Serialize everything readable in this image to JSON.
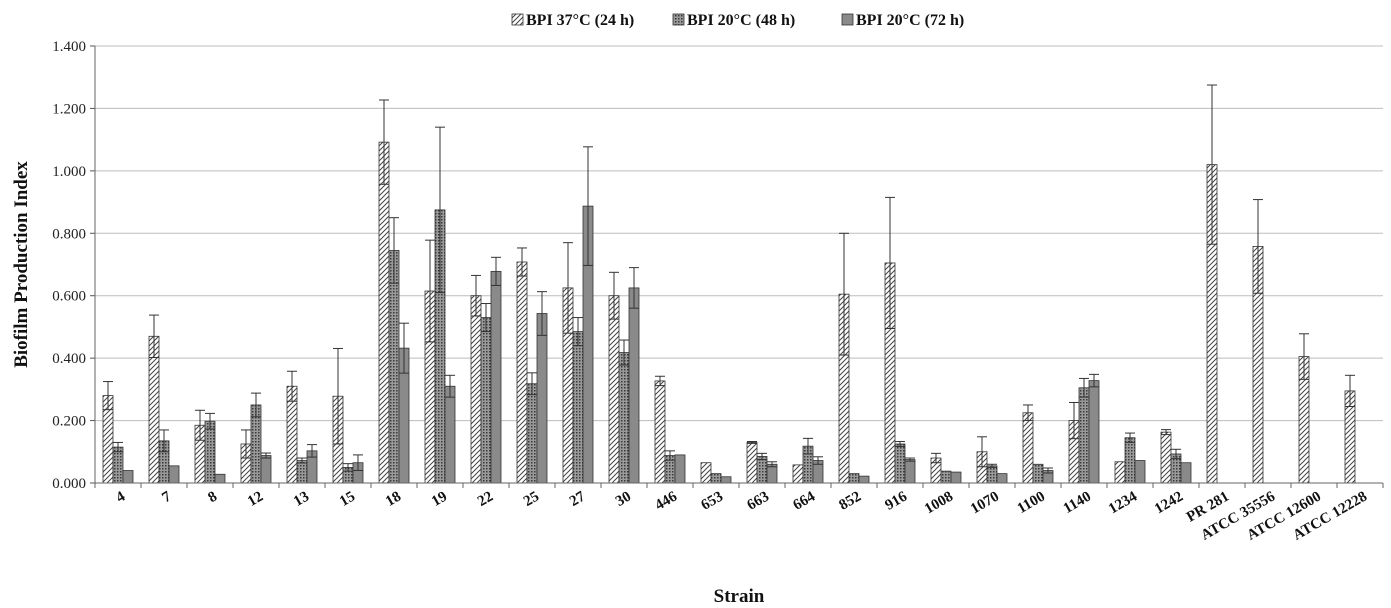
{
  "chart_data": {
    "type": "bar",
    "xlabel": "Strain",
    "ylabel": "Biofilm Production Index",
    "ylim": [
      0,
      1.4
    ],
    "yticks": [
      "0.000",
      "0.200",
      "0.400",
      "0.600",
      "0.800",
      "1.000",
      "1.200",
      "1.400"
    ],
    "grid": true,
    "legend_position": "top",
    "categories": [
      "4",
      "7",
      "8",
      "12",
      "13",
      "15",
      "18",
      "19",
      "22",
      "25",
      "27",
      "30",
      "446",
      "653",
      "663",
      "664",
      "852",
      "916",
      "1008",
      "1070",
      "1100",
      "1140",
      "1234",
      "1242",
      "PR 281",
      "ATCC 35556",
      "ATCC 12600",
      "ATCC 12228"
    ],
    "series": [
      {
        "name": "BPI 37°C (24 h)",
        "pattern": "diagonal-hatch",
        "values": [
          0.28,
          0.47,
          0.185,
          0.125,
          0.31,
          0.278,
          1.092,
          0.615,
          0.6,
          0.708,
          0.625,
          0.6,
          0.327,
          0.065,
          0.13,
          0.058,
          0.605,
          0.705,
          0.08,
          0.1,
          0.225,
          0.2,
          0.068,
          0.163,
          1.02,
          0.758,
          0.405,
          0.295
        ],
        "errors": [
          0.045,
          0.068,
          0.048,
          0.045,
          0.048,
          0.153,
          0.135,
          0.163,
          0.065,
          0.045,
          0.145,
          0.075,
          0.015,
          0.0,
          0.003,
          0.0,
          0.195,
          0.21,
          0.015,
          0.048,
          0.025,
          0.058,
          0.0,
          0.008,
          0.255,
          0.15,
          0.073,
          0.05
        ]
      },
      {
        "name": "BPI  20°C (48 h)",
        "pattern": "dotted",
        "values": [
          0.115,
          0.135,
          0.198,
          0.25,
          0.072,
          0.05,
          0.745,
          0.875,
          0.53,
          0.318,
          0.485,
          0.418,
          0.088,
          0.03,
          0.085,
          0.118,
          0.03,
          0.125,
          0.038,
          0.055,
          0.06,
          0.305,
          0.145,
          0.093,
          0,
          0,
          0,
          0
        ],
        "errors": [
          0.015,
          0.035,
          0.025,
          0.038,
          0.008,
          0.012,
          0.105,
          0.265,
          0.045,
          0.035,
          0.045,
          0.04,
          0.015,
          0.0,
          0.01,
          0.025,
          0.0,
          0.008,
          0.0,
          0.005,
          0.0,
          0.03,
          0.015,
          0.015,
          0,
          0,
          0,
          0
        ]
      },
      {
        "name": "BPI  20°C (72 h)",
        "pattern": "solid-gray",
        "values": [
          0.04,
          0.055,
          0.028,
          0.088,
          0.103,
          0.065,
          0.432,
          0.31,
          0.678,
          0.543,
          0.887,
          0.625,
          0.09,
          0.02,
          0.06,
          0.072,
          0.022,
          0.075,
          0.035,
          0.03,
          0.04,
          0.328,
          0.072,
          0.065,
          0,
          0,
          0,
          0
        ],
        "errors": [
          0.0,
          0.0,
          0.0,
          0.008,
          0.02,
          0.025,
          0.08,
          0.035,
          0.045,
          0.07,
          0.19,
          0.065,
          0.0,
          0.0,
          0.008,
          0.012,
          0.0,
          0.005,
          0.0,
          0.0,
          0.008,
          0.02,
          0.0,
          0.0,
          0,
          0,
          0,
          0
        ]
      }
    ]
  }
}
